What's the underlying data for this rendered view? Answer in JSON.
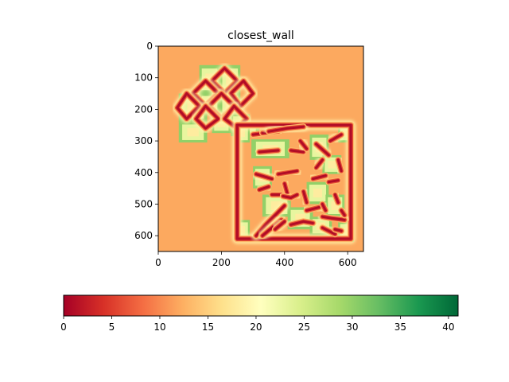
{
  "chart_data": {
    "type": "heatmap",
    "title": "closest_wall",
    "xlabel": "",
    "ylabel": "",
    "xlim": [
      0,
      650
    ],
    "ylim": [
      650,
      0
    ],
    "x_ticks": [
      0,
      200,
      400,
      600
    ],
    "y_ticks": [
      0,
      100,
      200,
      300,
      400,
      500,
      600
    ],
    "colormap": "RdYlGn",
    "colorbar": {
      "orientation": "horizontal",
      "range": [
        0,
        41
      ],
      "ticks": [
        0,
        5,
        10,
        15,
        20,
        25,
        30,
        35,
        40
      ]
    },
    "background_value": 12,
    "regions": {
      "diamond_area": {
        "cells": [
          [
            65,
            150,
            65,
            90
          ],
          [
            65,
            150,
            90,
            90
          ],
          [
            65,
            240,
            90,
            65
          ],
          [
            130,
            60,
            65,
            90
          ],
          [
            195,
            60,
            65,
            90
          ],
          [
            130,
            150,
            65,
            65
          ],
          [
            195,
            150,
            65,
            65
          ],
          [
            170,
            215,
            60,
            60
          ],
          [
            230,
            215,
            60,
            60
          ],
          [
            230,
            240,
            90,
            45
          ]
        ],
        "walls": [
          [
            [
              210,
              70
            ],
            [
              250,
              110
            ],
            [
              210,
              150
            ],
            [
              170,
              110
            ],
            [
              210,
              70
            ]
          ],
          [
            [
              150,
              110
            ],
            [
              190,
              150
            ],
            [
              150,
              190
            ],
            [
              110,
              150
            ],
            [
              150,
              110
            ]
          ],
          [
            [
              270,
              110
            ],
            [
              300,
              150
            ],
            [
              260,
              190
            ],
            [
              230,
              150
            ],
            [
              270,
              110
            ]
          ],
          [
            [
              200,
              150
            ],
            [
              240,
              190
            ],
            [
              200,
              230
            ],
            [
              160,
              190
            ],
            [
              200,
              150
            ]
          ],
          [
            [
              90,
              150
            ],
            [
              130,
              190
            ],
            [
              90,
              230
            ],
            [
              60,
              195
            ],
            [
              90,
              150
            ]
          ],
          [
            [
              150,
              190
            ],
            [
              190,
              230
            ],
            [
              150,
              260
            ],
            [
              120,
              230
            ],
            [
              150,
              190
            ]
          ],
          [
            [
              240,
              190
            ],
            [
              280,
              230
            ],
            [
              250,
              260
            ],
            [
              210,
              230
            ],
            [
              240,
              190
            ]
          ]
        ]
      },
      "maze_area": {
        "outer_wall": [
          [
            250,
            250
          ],
          [
            610,
            250
          ],
          [
            610,
            610
          ],
          [
            250,
            610
          ],
          [
            250,
            250
          ]
        ],
        "cells": [
          [
            240,
            245,
            50,
            60
          ],
          [
            240,
            550,
            50,
            65
          ],
          [
            570,
            245,
            50,
            60
          ],
          [
            570,
            555,
            50,
            65
          ],
          [
            295,
            295,
            120,
            60
          ],
          [
            300,
            380,
            60,
            70
          ],
          [
            480,
            280,
            60,
            80
          ],
          [
            520,
            345,
            60,
            60
          ],
          [
            470,
            430,
            70,
            70
          ],
          [
            530,
            470,
            60,
            70
          ],
          [
            330,
            470,
            90,
            70
          ],
          [
            410,
            510,
            80,
            70
          ],
          [
            480,
            540,
            70,
            60
          ]
        ],
        "walls": [
          [
            [
              300,
              280
            ],
            [
              340,
              275
            ]
          ],
          [
            [
              330,
              275
            ],
            [
              380,
              270
            ]
          ],
          [
            [
              350,
              270
            ],
            [
              410,
              260
            ],
            [
              460,
              255
            ]
          ],
          [
            [
              320,
              335
            ],
            [
              380,
              330
            ]
          ],
          [
            [
              420,
              330
            ],
            [
              460,
              335
            ]
          ],
          [
            [
              500,
              310
            ],
            [
              540,
              345
            ]
          ],
          [
            [
              545,
              300
            ],
            [
              580,
              280
            ]
          ],
          [
            [
              450,
              300
            ],
            [
              470,
              325
            ]
          ],
          [
            [
              310,
              405
            ],
            [
              360,
              420
            ]
          ],
          [
            [
              380,
              405
            ],
            [
              440,
              395
            ]
          ],
          [
            [
              400,
              435
            ],
            [
              410,
              470
            ]
          ],
          [
            [
              500,
              385
            ],
            [
              520,
              360
            ]
          ],
          [
            [
              490,
              420
            ],
            [
              530,
              410
            ]
          ],
          [
            [
              570,
              360
            ],
            [
              580,
              395
            ]
          ],
          [
            [
              320,
              455
            ],
            [
              350,
              445
            ]
          ],
          [
            [
              360,
              470
            ],
            [
              390,
              470
            ]
          ],
          [
            [
              395,
              475
            ],
            [
              420,
              480
            ],
            [
              440,
              470
            ]
          ],
          [
            [
              460,
              460
            ],
            [
              470,
              495
            ]
          ],
          [
            [
              540,
              430
            ],
            [
              570,
              425
            ]
          ],
          [
            [
              560,
              470
            ],
            [
              570,
              495
            ]
          ],
          [
            [
              310,
              600
            ],
            [
              340,
              565
            ],
            [
              370,
              535
            ],
            [
              400,
              505
            ]
          ],
          [
            [
              330,
              600
            ],
            [
              360,
              575
            ],
            [
              390,
              550
            ]
          ],
          [
            [
              370,
              580
            ],
            [
              400,
              555
            ]
          ],
          [
            [
              420,
              565
            ],
            [
              460,
              555
            ],
            [
              490,
              560
            ]
          ],
          [
            [
              470,
              520
            ],
            [
              510,
              510
            ]
          ],
          [
            [
              520,
              540
            ],
            [
              550,
              545
            ],
            [
              590,
              550
            ]
          ],
          [
            [
              520,
              575
            ],
            [
              560,
              595
            ]
          ],
          [
            [
              520,
              500
            ],
            [
              530,
              520
            ]
          ],
          [
            [
              580,
              520
            ],
            [
              590,
              535
            ]
          ],
          [
            [
              560,
              580
            ],
            [
              580,
              585
            ]
          ]
        ]
      }
    }
  }
}
